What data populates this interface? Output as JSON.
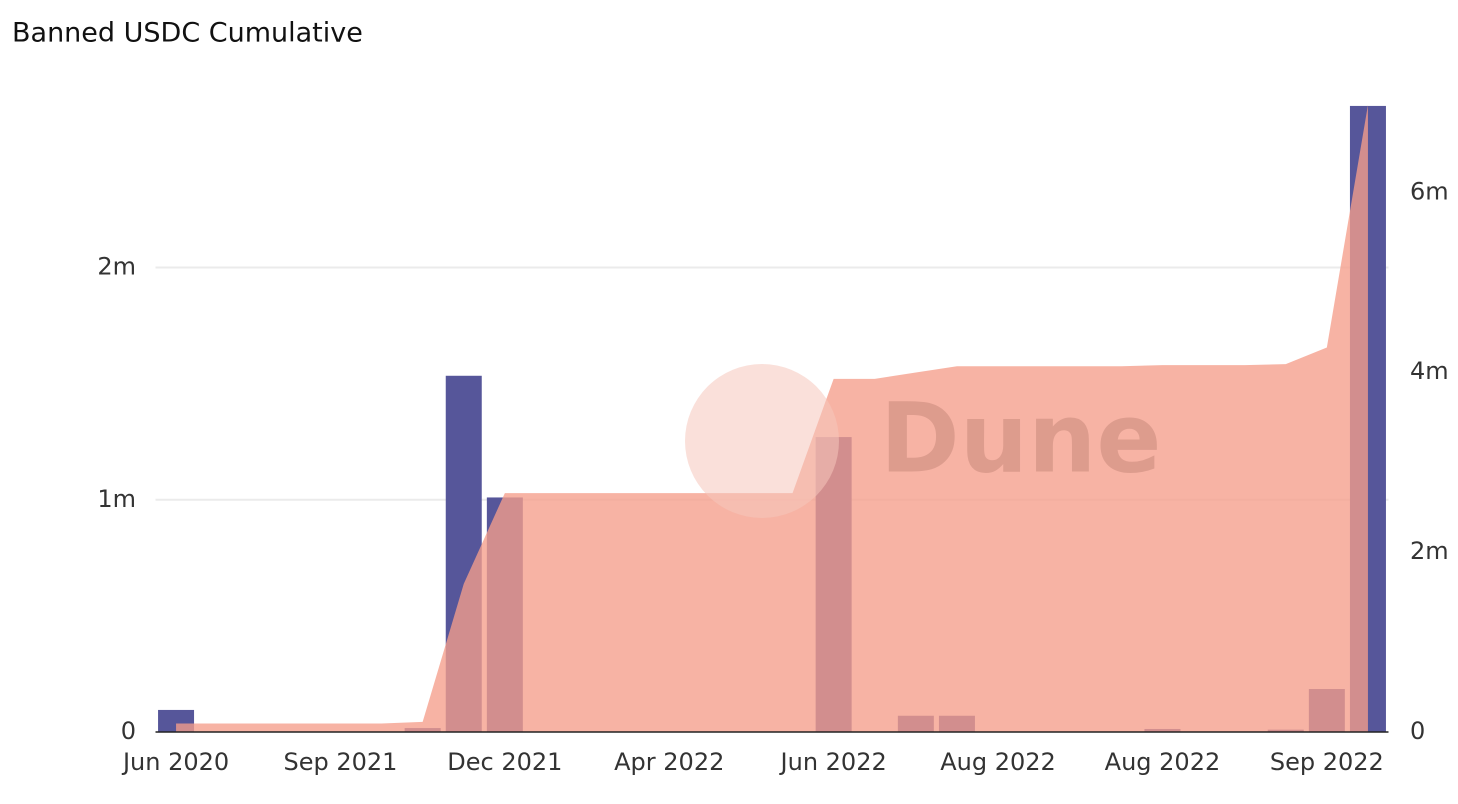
{
  "chart_data": {
    "type": "bar_area",
    "title": "Banned USDC Cumulative",
    "watermark": "Dune",
    "categories": [
      "Jun 2020",
      null,
      null,
      null,
      "Sep 2021",
      null,
      null,
      null,
      "Dec 2021",
      null,
      null,
      null,
      "Apr 2022",
      null,
      null,
      null,
      "Jun 2022",
      null,
      null,
      null,
      "Aug 2022",
      null,
      null,
      null,
      "Aug 2022",
      null,
      null,
      null,
      "Sep 2022",
      null
    ],
    "series": [
      {
        "type": "bar",
        "color": "#56569a",
        "values": [
          95000,
          0,
          0,
          0,
          0,
          0,
          17000,
          1534000,
          1010000,
          0,
          0,
          0,
          0,
          0,
          0,
          0,
          1270000,
          0,
          70000,
          70000,
          0,
          0,
          0,
          0,
          13000,
          0,
          0,
          10000,
          185000,
          2696000
        ]
      },
      {
        "type": "area",
        "axis": "y2",
        "color": "#f59e8a",
        "values": [
          95000,
          95000,
          95000,
          95000,
          95000,
          95000,
          112000,
          1646000,
          2656000,
          2656000,
          2656000,
          2656000,
          2656000,
          2656000,
          2656000,
          2656000,
          3926000,
          3926000,
          3996000,
          4066000,
          4066000,
          4066000,
          4066000,
          4066000,
          4079000,
          4079000,
          4079000,
          4089000,
          4274000,
          6970000
        ]
      }
    ],
    "ylim": [
      0,
      2700000
    ],
    "yticks": [
      0,
      {
        "value": 1000000,
        "label": "1m"
      },
      {
        "value": 2000000,
        "label": "2m"
      }
    ],
    "y2lim": [
      0,
      6970000
    ],
    "y2ticks": [
      0,
      {
        "value": 2000000,
        "label": "2m"
      },
      {
        "value": 4000000,
        "label": "4m"
      },
      {
        "value": 6000000,
        "label": "6m"
      }
    ],
    "grid": true
  }
}
